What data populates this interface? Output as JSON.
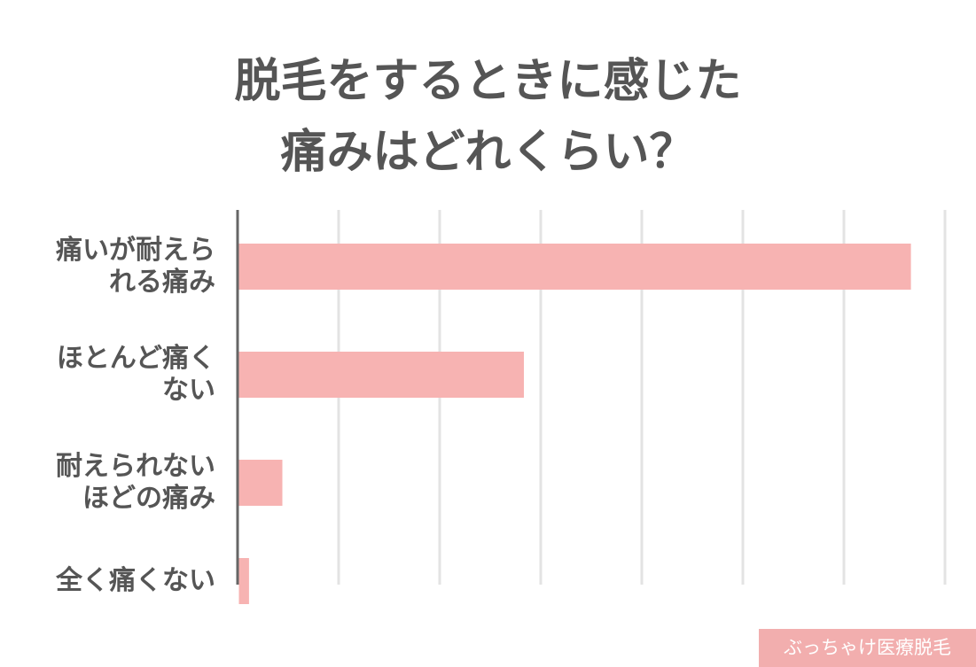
{
  "chart_data": {
    "type": "bar",
    "orientation": "horizontal",
    "title": "脱毛をするときに感じた\n痛みはどれくらい？",
    "categories": [
      "痛いが耐えら\nれる痛み",
      "ほとんど痛く\nない",
      "耐えられない\nほどの痛み",
      "全く痛くない"
    ],
    "values": [
      66.5,
      28.2,
      4.3,
      1.0
    ],
    "color": "#f7b3b2",
    "xlim": [
      0,
      70
    ],
    "xticks": [
      0,
      10,
      20,
      30,
      40,
      50,
      60,
      70
    ],
    "grid": true,
    "watermark": "ぶっちゃけ医療脱毛"
  }
}
